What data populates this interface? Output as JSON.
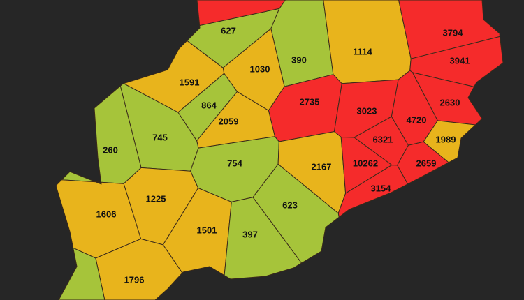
{
  "regions": [
    {
      "value": 627,
      "color": "#a6c43a"
    },
    {
      "value": 390,
      "color": "#a6c43a"
    },
    {
      "value": 1114,
      "color": "#e8b41c"
    },
    {
      "value": 3794,
      "color": "#f52b2b"
    },
    {
      "value": 3941,
      "color": "#f52b2b"
    },
    {
      "value": 1030,
      "color": "#e8b41c"
    },
    {
      "value": 1591,
      "color": "#e8b41c"
    },
    {
      "value": 864,
      "color": "#a6c43a"
    },
    {
      "value": 2735,
      "color": "#f52b2b"
    },
    {
      "value": 3023,
      "color": "#f52b2b"
    },
    {
      "value": 4720,
      "color": "#f52b2b"
    },
    {
      "value": 2630,
      "color": "#f52b2b"
    },
    {
      "value": 2059,
      "color": "#e8b41c"
    },
    {
      "value": 745,
      "color": "#a6c43a"
    },
    {
      "value": 260,
      "color": "#a6c43a"
    },
    {
      "value": 6321,
      "color": "#f52b2b"
    },
    {
      "value": 1989,
      "color": "#e8b41c"
    },
    {
      "value": 754,
      "color": "#a6c43a"
    },
    {
      "value": 2167,
      "color": "#e8b41c"
    },
    {
      "value": 10262,
      "color": "#f52b2b"
    },
    {
      "value": 2659,
      "color": "#f52b2b"
    },
    {
      "value": 1225,
      "color": "#e8b41c"
    },
    {
      "value": 1606,
      "color": "#e8b41c"
    },
    {
      "value": 3154,
      "color": "#f52b2b"
    },
    {
      "value": 623,
      "color": "#a6c43a"
    },
    {
      "value": 1501,
      "color": "#e8b41c"
    },
    {
      "value": 397,
      "color": "#a6c43a"
    },
    {
      "value": 1796,
      "color": "#e8b41c"
    }
  ]
}
